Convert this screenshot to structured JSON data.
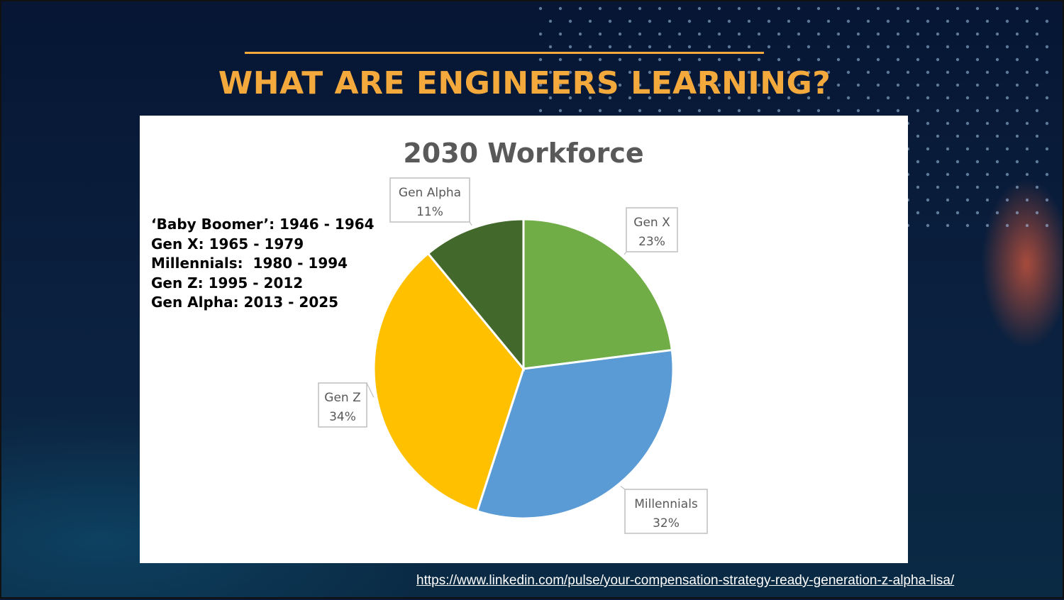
{
  "slide": {
    "title": "WHAT ARE ENGINEERS LEARNING?",
    "accent_color": "#f4a93d",
    "source_link": "https://www.linkedin.com/pulse/your-compensation-strategy-ready-generation-z-alpha-lisa/"
  },
  "generations": [
    "‘Baby Boomer’: 1946 - 1964",
    "Gen X: 1965 - 1979",
    "Millennials:  1980 - 1994",
    "Gen Z: 1995 - 2012",
    "Gen Alpha: 2013 - 2025"
  ],
  "chart_data": {
    "type": "pie",
    "title": "2030 Workforce",
    "start": "12 o'clock, clockwise",
    "slices": [
      {
        "name": "Gen X",
        "value": 23,
        "label": "23%",
        "color": "#70ad47"
      },
      {
        "name": "Millennials",
        "value": 32,
        "label": "32%",
        "color": "#5b9bd5"
      },
      {
        "name": "Gen Z",
        "value": 34,
        "label": "34%",
        "color": "#ffc000"
      },
      {
        "name": "Gen Alpha",
        "value": 11,
        "label": "11%",
        "color": "#43682b"
      }
    ],
    "legend": "none",
    "data_labels": "callouts with name and percent"
  }
}
